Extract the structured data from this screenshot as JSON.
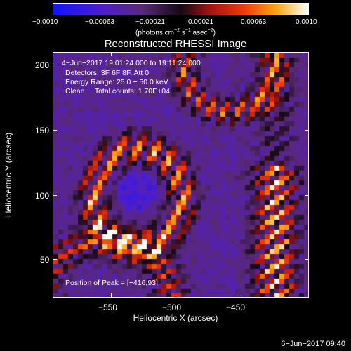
{
  "colorbar": {
    "ticks": [
      "−0.0010",
      "−0.00063",
      "−0.00021",
      "0.00021",
      "0.00063",
      "0.0010"
    ],
    "units_base": "(photons cm",
    "units_exp1": "−2",
    "units_mid": " s",
    "units_exp2": "−1",
    "units_mid2": " asec",
    "units_exp3": "−2",
    "units_end": ")"
  },
  "title": "Reconstructed RHESSI Image",
  "overlay": {
    "line1": "4−Jun−2017 19:01:24.000 to 19:11:24.000",
    "line2": "Detectors: 3F 6F 8F, Att 0",
    "line3": "Energy Range: 25.0 − 50.0 keV",
    "line4": "Clean     Total counts: 1.70E+04",
    "peak": "Position of Peak = [−416,93]"
  },
  "axes": {
    "xlabel": "Heliocentric X (arcsec)",
    "ylabel": "Heliocentric Y (arcsec)",
    "xticks": [
      "−550",
      "−500",
      "−450"
    ],
    "yticks": [
      "200",
      "150",
      "100",
      "50"
    ]
  },
  "datestamp": "6−Jun−2017 09:40"
}
